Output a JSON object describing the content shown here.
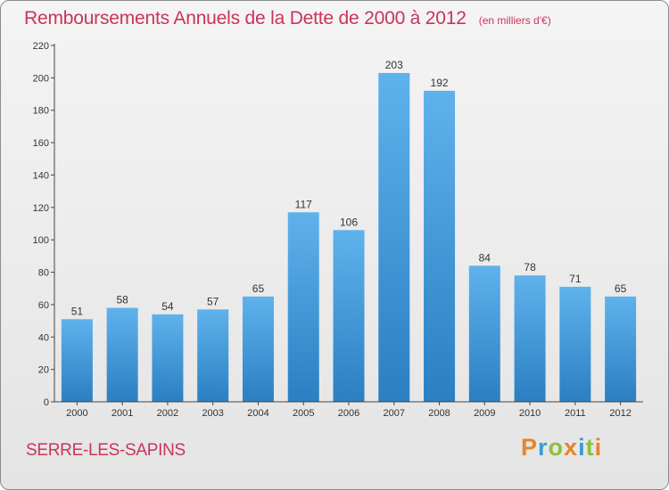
{
  "chart_data": {
    "type": "bar",
    "title": "Remboursements Annuels de la Dette de 2000 à 2012",
    "subtitle": "(en milliers d'€)",
    "categories": [
      "2000",
      "2001",
      "2002",
      "2003",
      "2004",
      "2005",
      "2006",
      "2007",
      "2008",
      "2009",
      "2010",
      "2011",
      "2012"
    ],
    "values": [
      51,
      58,
      54,
      57,
      65,
      117,
      106,
      203,
      192,
      84,
      78,
      71,
      65
    ],
    "data_labels": [
      "51",
      "58",
      "54",
      "57",
      "65",
      "117",
      "106",
      "203",
      "192",
      "84",
      "78",
      "71",
      "65"
    ],
    "xlabel": "",
    "ylabel": "",
    "ylim": [
      0,
      220
    ],
    "yticks": [
      0,
      20,
      40,
      60,
      80,
      100,
      120,
      140,
      160,
      180,
      200,
      220
    ],
    "grid": false,
    "bar_color": "#3d96d8"
  },
  "footer": {
    "commune": "SERRE-LES-SAPINS"
  },
  "brand": {
    "letters": [
      {
        "ch": "P",
        "color": "#e8842a"
      },
      {
        "ch": "r",
        "color": "#3a9bd8"
      },
      {
        "ch": "o",
        "color": "#8dbf3a"
      },
      {
        "ch": "x",
        "color": "#e8842a"
      },
      {
        "ch": "i",
        "color": "#3a9bd8"
      },
      {
        "ch": "t",
        "color": "#8dbf3a"
      },
      {
        "ch": "i",
        "color": "#e8842a"
      }
    ]
  },
  "colors": {
    "title": "#c8355a",
    "axis": "#333333",
    "label": "#333333"
  }
}
